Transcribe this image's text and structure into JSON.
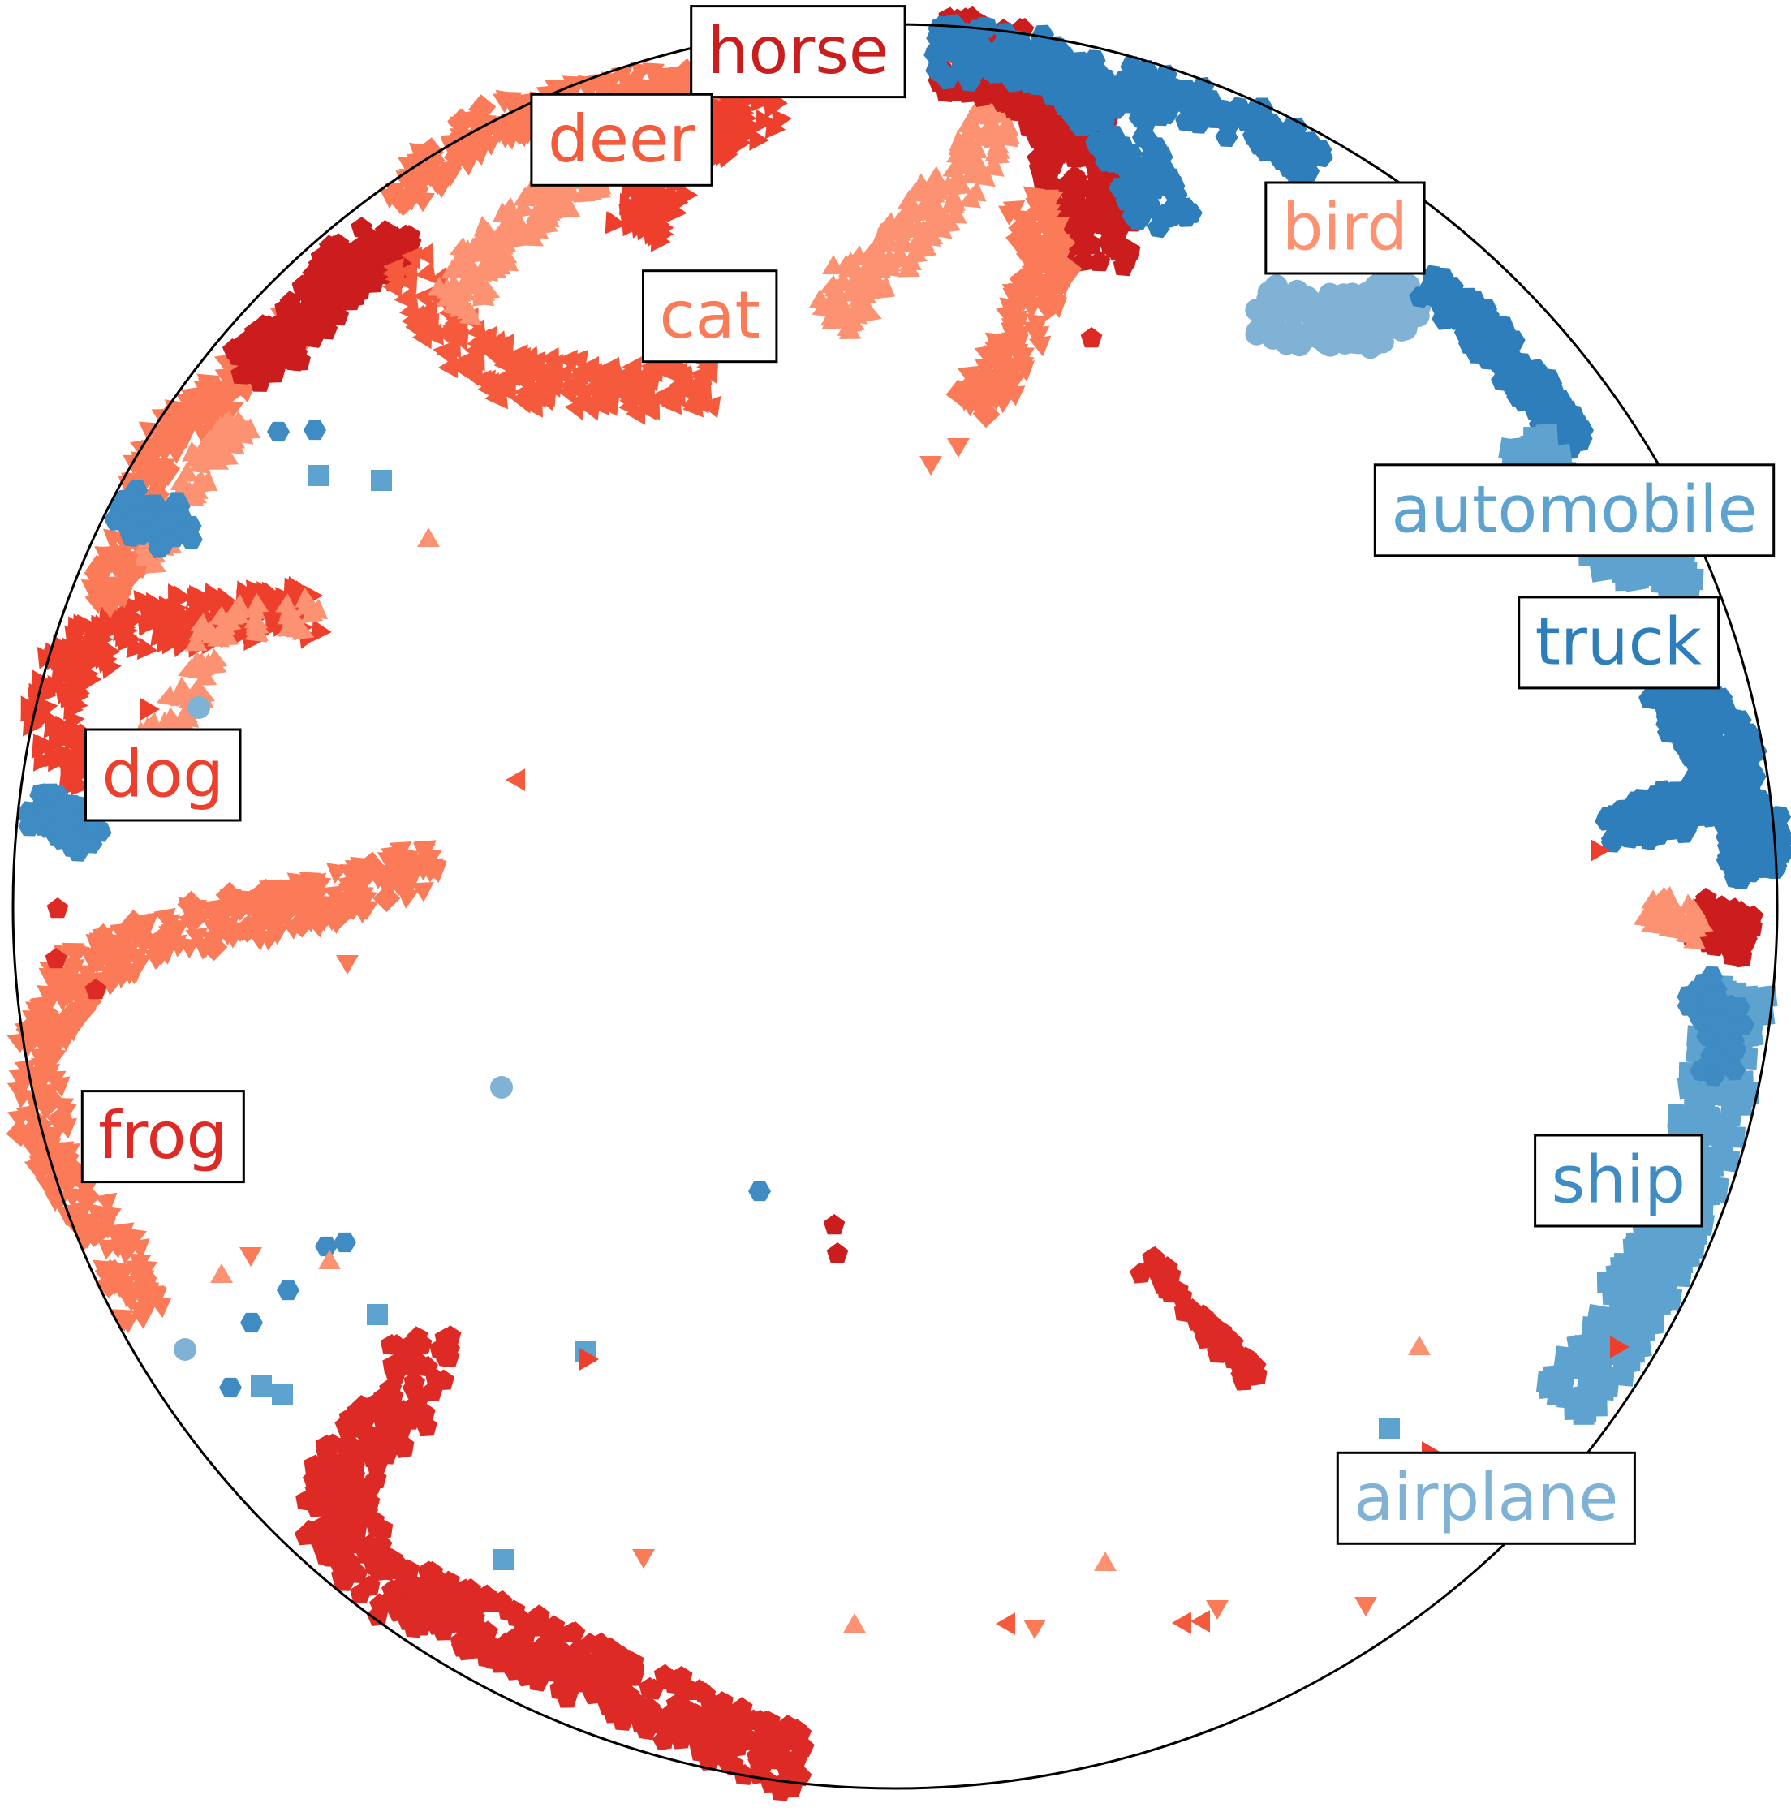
{
  "chart_data": {
    "type": "scatter",
    "title": "",
    "xlabel": "",
    "ylabel": "",
    "grid": false,
    "boundary": "unit circle",
    "series": [
      {
        "name": "airplane",
        "color": "#7fb2d5",
        "marker": "circle"
      },
      {
        "name": "automobile",
        "color": "#5ea3cf",
        "marker": "square"
      },
      {
        "name": "bird",
        "color": "#fc9272",
        "marker": "triangle-up"
      },
      {
        "name": "cat",
        "color": "#fb7a58",
        "marker": "triangle-down"
      },
      {
        "name": "deer",
        "color": "#f55a3d",
        "marker": "triangle-left"
      },
      {
        "name": "dog",
        "color": "#ee3e2c",
        "marker": "triangle-right"
      },
      {
        "name": "frog",
        "color": "#dd2a25",
        "marker": "pentagon"
      },
      {
        "name": "horse",
        "color": "#cb1d1d",
        "marker": "pentagon"
      },
      {
        "name": "ship",
        "color": "#3f8bc4",
        "marker": "hexagon"
      },
      {
        "name": "truck",
        "color": "#2e7ebc",
        "marker": "hexagon"
      }
    ],
    "xlim": [
      -1,
      1
    ],
    "ylim": [
      -1,
      1
    ],
    "class_labels": [
      {
        "text": "horse",
        "color": "#cb1d1d",
        "x": -0.11,
        "y": 0.97
      },
      {
        "text": "deer",
        "color": "#f55a3d",
        "x": -0.31,
        "y": 0.87
      },
      {
        "text": "cat",
        "color": "#fb7a58",
        "x": -0.21,
        "y": 0.67
      },
      {
        "text": "bird",
        "color": "#fc9272",
        "x": 0.51,
        "y": 0.77
      },
      {
        "text": "automobile",
        "color": "#5ea3cf",
        "x": 0.77,
        "y": 0.45
      },
      {
        "text": "truck",
        "color": "#2e7ebc",
        "x": 0.82,
        "y": 0.3
      },
      {
        "text": "dog",
        "color": "#ee3e2c",
        "x": -0.83,
        "y": 0.15
      },
      {
        "text": "frog",
        "color": "#dd2a25",
        "x": -0.83,
        "y": -0.26
      },
      {
        "text": "ship",
        "color": "#3f8bc4",
        "x": 0.82,
        "y": -0.31
      },
      {
        "text": "airplane",
        "color": "#7fb2d5",
        "x": 0.67,
        "y": -0.67
      }
    ]
  }
}
